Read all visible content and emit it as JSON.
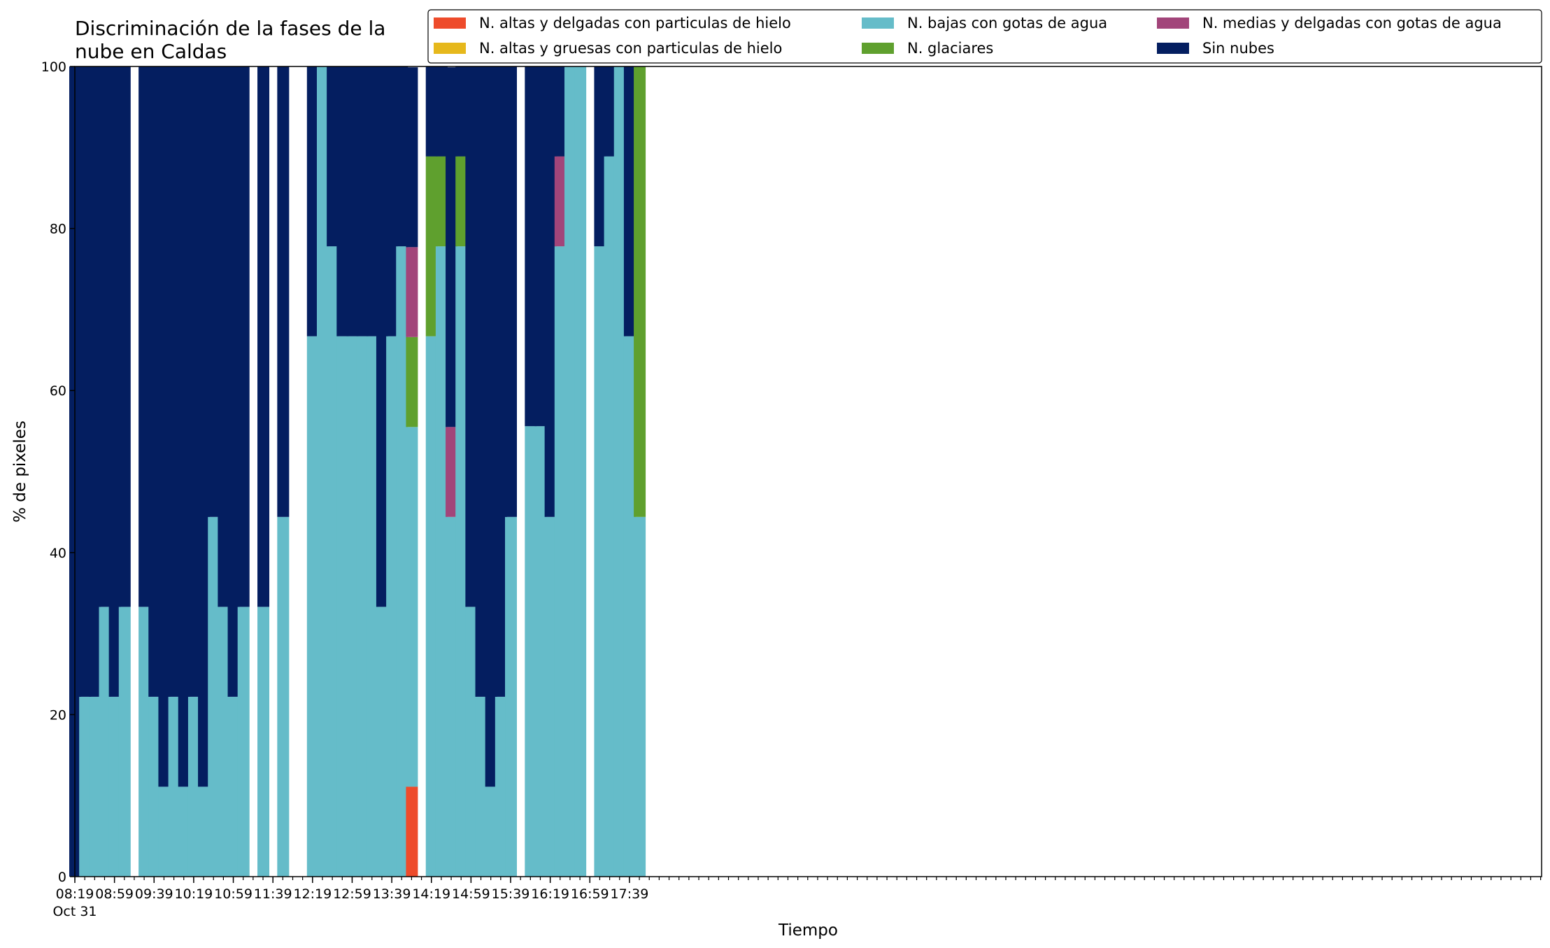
{
  "chart_data": {
    "type": "bar",
    "stacked": true,
    "title_lines": [
      "Discriminación de la fases de la",
      "nube en Caldas"
    ],
    "xlabel": "Tiempo",
    "ylabel": "% de pixeles",
    "ylim": [
      0,
      100
    ],
    "yticks": [
      0,
      20,
      40,
      60,
      80,
      100
    ],
    "grid": false,
    "legend_position": "top-right",
    "x_date_label": "Oct 31",
    "xtick_labels": [
      "08:19",
      "08:59",
      "09:39",
      "10:19",
      "10:59",
      "11:39",
      "12:19",
      "12:59",
      "13:39",
      "14:19",
      "14:59",
      "15:39",
      "16:19",
      "16:59",
      "17:39"
    ],
    "categories": [
      "08:19",
      "08:29",
      "08:39",
      "08:49",
      "08:59",
      "09:09",
      "09:29",
      "09:39",
      "09:49",
      "09:59",
      "10:09",
      "10:19",
      "10:29",
      "10:39",
      "10:49",
      "10:59",
      "11:09",
      "11:29",
      "11:49",
      "12:19",
      "12:29",
      "12:39",
      "12:49",
      "12:59",
      "13:09",
      "13:19",
      "13:29",
      "13:39",
      "13:49",
      "13:59",
      "14:19",
      "14:29",
      "14:39",
      "14:49",
      "14:59",
      "15:09",
      "15:19",
      "15:29",
      "15:39",
      "15:59",
      "16:09",
      "16:19",
      "16:29",
      "16:39",
      "16:49",
      "17:09",
      "17:19",
      "17:29",
      "17:39",
      "17:49"
    ],
    "series": [
      {
        "name": "N. altas y delgadas con particulas de hielo",
        "color": "#ee4b2b",
        "values": [
          0,
          0,
          0,
          0,
          0,
          0,
          0,
          0,
          0,
          0,
          0,
          0,
          0,
          0,
          0,
          0,
          0,
          0,
          0,
          0,
          0,
          0,
          0,
          0,
          0,
          0,
          0,
          0,
          0,
          11.1,
          0,
          0,
          0,
          0,
          0,
          0,
          0,
          0,
          0,
          0,
          0,
          0,
          0,
          0,
          0,
          0,
          0,
          0,
          0,
          0
        ]
      },
      {
        "name": "N. altas y gruesas con particulas de hielo",
        "color": "#e6b81c",
        "values": [
          0,
          0,
          0,
          0,
          0,
          0,
          0,
          0,
          0,
          0,
          0,
          0,
          0,
          0,
          0,
          0,
          0,
          0,
          0,
          0,
          0,
          0,
          0,
          0,
          0,
          0,
          0,
          0,
          0,
          0,
          0,
          0,
          0,
          0,
          0,
          0,
          0,
          0,
          0,
          0,
          0,
          0,
          0,
          0,
          0,
          0,
          0,
          0,
          0,
          0
        ]
      },
      {
        "name": "N. bajas con gotas de agua",
        "color": "#65bcc9",
        "values": [
          0,
          22.2,
          22.2,
          33.3,
          22.2,
          33.3,
          33.3,
          22.2,
          11.1,
          22.2,
          11.1,
          22.2,
          11.1,
          44.4,
          33.3,
          22.2,
          33.3,
          33.3,
          44.4,
          66.7,
          100,
          77.8,
          66.7,
          66.7,
          66.7,
          66.7,
          33.3,
          66.7,
          77.8,
          44.4,
          66.7,
          77.8,
          44.4,
          77.8,
          33.3,
          22.2,
          11.1,
          22.2,
          44.4,
          55.6,
          55.6,
          44.4,
          77.8,
          100,
          100,
          77.8,
          88.9,
          100,
          66.7,
          44.4
        ]
      },
      {
        "name": "N. glaciares",
        "color": "#5fa02e",
        "values": [
          0,
          0,
          0,
          0,
          0,
          0,
          0,
          0,
          0,
          0,
          0,
          0,
          0,
          0,
          0,
          0,
          0,
          0,
          0,
          0,
          0,
          0,
          0,
          0,
          0,
          0,
          0,
          0,
          0,
          11.1,
          22.2,
          11.1,
          0,
          11.1,
          0,
          0,
          0,
          0,
          0,
          0,
          0,
          0,
          0,
          0,
          0,
          0,
          0,
          0,
          0,
          55.6
        ]
      },
      {
        "name": "N. medias y delgadas con gotas de agua",
        "color": "#a2457a",
        "values": [
          0,
          0,
          0,
          0,
          0,
          0,
          0,
          0,
          0,
          0,
          0,
          0,
          0,
          0,
          0,
          0,
          0,
          0,
          0,
          0,
          0,
          0,
          0,
          0,
          0,
          0,
          0,
          0,
          0,
          11.1,
          0,
          0,
          11.1,
          0,
          0,
          0,
          0,
          0,
          0,
          0,
          0,
          0,
          11.1,
          0,
          0,
          0,
          0,
          0,
          0,
          0
        ]
      },
      {
        "name": "Sin nubes",
        "color": "#041e60",
        "values": [
          100,
          77.8,
          77.8,
          66.7,
          77.8,
          66.7,
          66.7,
          77.8,
          88.9,
          77.8,
          88.9,
          77.8,
          88.9,
          55.6,
          66.7,
          77.8,
          66.7,
          66.7,
          55.6,
          33.3,
          0,
          22.2,
          33.3,
          33.3,
          33.3,
          33.3,
          66.7,
          33.3,
          22.2,
          22.2,
          11.1,
          11.1,
          44.4,
          11.1,
          66.7,
          77.8,
          88.9,
          77.8,
          55.6,
          44.4,
          44.4,
          55.6,
          11.1,
          0,
          0,
          22.2,
          11.1,
          0,
          33.3,
          0
        ]
      }
    ]
  }
}
